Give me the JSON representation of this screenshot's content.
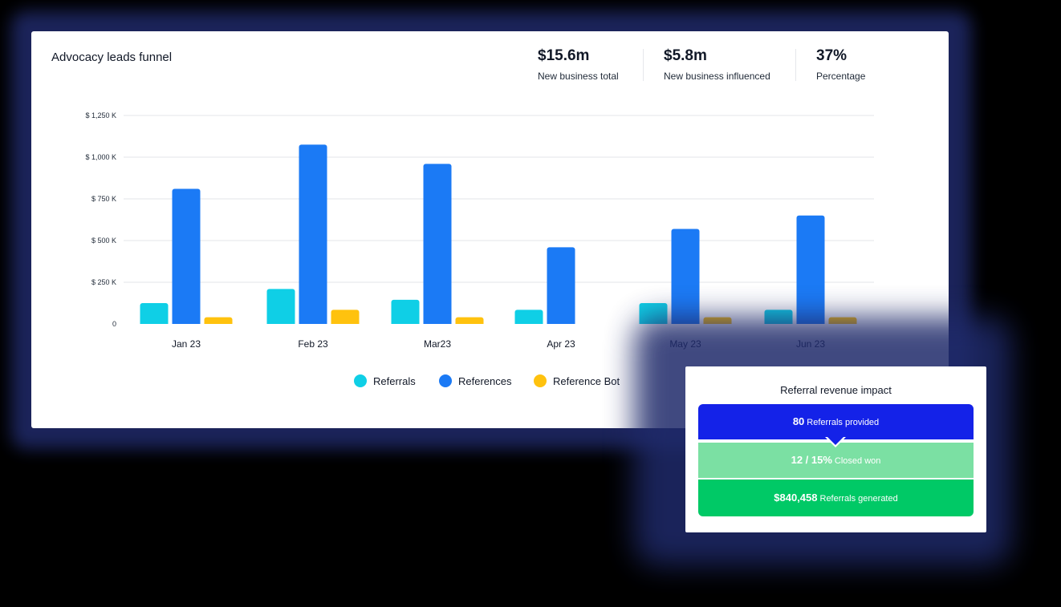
{
  "card": {
    "title": "Advocacy leads funnel"
  },
  "kpis": [
    {
      "value": "$15.6m",
      "label": "New business total"
    },
    {
      "value": "$5.8m",
      "label": "New business influenced"
    },
    {
      "value": "37%",
      "label": "Percentage"
    }
  ],
  "chart_data": {
    "type": "bar",
    "title": "Advocacy leads funnel",
    "xlabel": "",
    "ylabel": "",
    "ylim": [
      0,
      1250
    ],
    "yticks": [
      0,
      250,
      500,
      750,
      1000,
      1250
    ],
    "ytick_labels": [
      "0",
      "$ 250 K",
      "$ 500 K",
      "$ 750 K",
      "$ 1,000 K",
      "$ 1,250 K"
    ],
    "grid": true,
    "legend_position": "bottom",
    "categories": [
      "Jan 23",
      "Feb 23",
      "Mar23",
      "Apr 23",
      "May 23",
      "Jun 23"
    ],
    "series": [
      {
        "name": "Referrals",
        "color": "#0fcfe6",
        "values": [
          125,
          210,
          145,
          85,
          125,
          85
        ]
      },
      {
        "name": "References",
        "color": "#1b7af5",
        "values": [
          810,
          1075,
          960,
          460,
          570,
          650
        ]
      },
      {
        "name": "Reference Bot",
        "color": "#ffc20e",
        "values": [
          40,
          85,
          40,
          0,
          40,
          40
        ]
      }
    ]
  },
  "impact": {
    "title": "Referral revenue impact",
    "steps": [
      {
        "value": "80",
        "label": "Referrals provided"
      },
      {
        "value": "12 / 15%",
        "label": "Closed won"
      },
      {
        "value": "$840,458",
        "label": "Referrals generated"
      }
    ]
  }
}
